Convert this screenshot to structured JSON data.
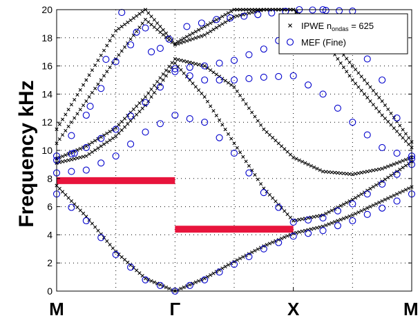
{
  "chart_data": {
    "type": "scatter",
    "title": "",
    "xlabel": "",
    "ylabel": "Frequency kHz",
    "ylim": [
      0,
      20
    ],
    "yticks": [
      0,
      2,
      4,
      6,
      8,
      10,
      12,
      14,
      16,
      18,
      20
    ],
    "xlim": [
      0,
      3
    ],
    "xticks": [
      {
        "pos": 0,
        "label": "M"
      },
      {
        "pos": 1,
        "label": "Γ"
      },
      {
        "pos": 2,
        "label": "X"
      },
      {
        "pos": 3,
        "label": "M"
      }
    ],
    "grid": true,
    "legend": {
      "position": "top-right",
      "entries": [
        {
          "label": "IPWE n",
          "label_sub": "ondas",
          "label_suffix": " = 625",
          "marker": "x",
          "color": "#000000"
        },
        {
          "label": "MEF (Fine)",
          "label_sub": "",
          "label_suffix": "",
          "marker": "o",
          "color": "#0000cc"
        }
      ]
    },
    "band_gaps": [
      {
        "x": [
          0,
          1
        ],
        "y": 7.85,
        "color": "#e8143c"
      },
      {
        "x": [
          1,
          2
        ],
        "y": 4.4,
        "color": "#e8143c"
      }
    ],
    "series": [
      {
        "name": "IPWE n ondas = 625",
        "marker": "x",
        "color": "#000000",
        "bands": [
          {
            "x": [
              0,
              0.25,
              0.5,
              0.75,
              1,
              1.25,
              1.5,
              1.75,
              2,
              2.25,
              2.5,
              2.75,
              3
            ],
            "y": [
              7.5,
              5.3,
              2.8,
              0.9,
              0,
              0.9,
              2.1,
              3.2,
              4.1,
              4.6,
              5.4,
              6.4,
              7.4
            ]
          },
          {
            "x": [
              0,
              0.25,
              0.5,
              0.75,
              1,
              1.25,
              1.5,
              1.75,
              2,
              2.25,
              2.5,
              2.75,
              3
            ],
            "y": [
              9.1,
              9.6,
              11.0,
              13.2,
              16.2,
              13.8,
              10.5,
              7.3,
              5.0,
              5.4,
              6.5,
              7.8,
              9.2
            ]
          },
          {
            "x": [
              0,
              0.25,
              0.5,
              0.75,
              1,
              1.25,
              1.5,
              1.75,
              2,
              2.25,
              2.5,
              2.75,
              3
            ],
            "y": [
              9.4,
              10.3,
              11.6,
              13.8,
              16.5,
              16.0,
              14.5,
              11.5,
              9.5,
              8.5,
              8.3,
              8.7,
              9.5
            ]
          },
          {
            "x": [
              0,
              0.25,
              0.5,
              0.75,
              1,
              1.25,
              1.5,
              1.75,
              2,
              2.25,
              2.5,
              2.75,
              3
            ],
            "y": [
              10.5,
              13.5,
              16.5,
              19.3,
              17.5,
              18.2,
              19.5,
              20,
              20,
              18.0,
              15.0,
              12.5,
              10.2
            ]
          },
          {
            "x": [
              0,
              0.25,
              0.5,
              0.75,
              1,
              1.25,
              1.5,
              1.75,
              2,
              2.25,
              2.5,
              2.75,
              3
            ],
            "y": [
              11.5,
              15.0,
              18.5,
              20,
              17.6,
              18.8,
              20,
              20,
              20,
              18.6,
              16.0,
              13.5,
              10.6
            ]
          }
        ]
      },
      {
        "name": "MEF (Fine)",
        "marker": "o",
        "color": "#0000cc",
        "bands": [
          {
            "x": [
              0,
              0.25,
              0.5,
              0.75,
              1,
              1.25,
              1.5,
              1.75,
              2,
              2.25,
              2.5,
              2.75,
              3
            ],
            "y": [
              6.9,
              5.0,
              2.6,
              0.8,
              0,
              0.8,
              1.9,
              3.0,
              3.9,
              4.3,
              5.0,
              5.9,
              6.9
            ]
          },
          {
            "x": [
              0,
              0.25,
              0.5,
              0.75,
              1,
              1.25,
              1.5,
              1.75,
              2,
              2.25,
              2.5,
              2.75,
              3
            ],
            "y": [
              8.4,
              8.6,
              9.6,
              11.3,
              12.5,
              12.0,
              9.8,
              7.0,
              4.9,
              5.2,
              6.2,
              7.6,
              9.0
            ]
          },
          {
            "x": [
              0,
              0.25,
              0.5,
              0.75,
              1,
              1.25,
              1.5,
              1.75,
              2,
              2.25,
              2.5,
              2.75,
              3
            ],
            "y": [
              9.3,
              10.2,
              11.5,
              13.4,
              15.6,
              15.0,
              15.0,
              15.2,
              15.3,
              14.0,
              12.0,
              10.2,
              9.4
            ]
          },
          {
            "x": [
              0,
              0.25,
              0.5,
              0.75,
              1,
              1.25,
              1.5,
              1.75,
              2,
              2.25,
              2.5,
              2.75,
              3
            ],
            "y": [
              9.6,
              12.5,
              16.3,
              18.7,
              15.8,
              16.0,
              16.4,
              17.2,
              18.4,
              20,
              18.0,
              15.0,
              9.6
            ]
          },
          {
            "x": [
              0.15,
              0.55,
              0.8,
              1.1,
              1.35,
              2.05,
              2.5
            ],
            "y": [
              9.8,
              19.8,
              17.0,
              18.8,
              19.3,
              20,
              19.9
            ]
          }
        ]
      }
    ]
  }
}
